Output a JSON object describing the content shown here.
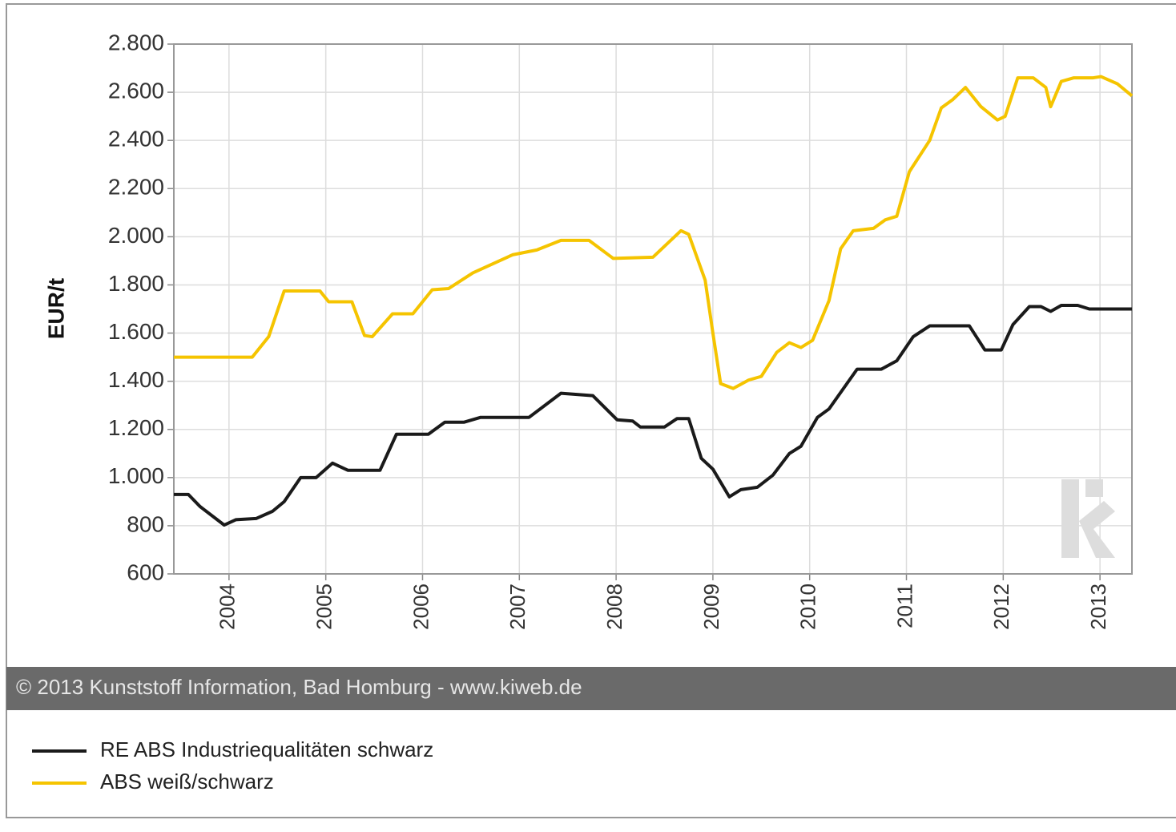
{
  "chart_data": {
    "type": "line",
    "y_label": "EUR/t",
    "footer": "© 2013 Kunststoff Information, Bad Homburg - www.kiweb.de",
    "xlim": [
      2003.43,
      2013.33
    ],
    "xticks": [
      2004,
      2005,
      2006,
      2007,
      2008,
      2009,
      2010,
      2011,
      2012,
      2013
    ],
    "ylim": [
      600,
      2800
    ],
    "yticks": [
      600,
      800,
      {
        "value": 1000,
        "label": "1.000"
      },
      {
        "value": 1200,
        "label": "1.200"
      },
      {
        "value": 1400,
        "label": "1.400"
      },
      {
        "value": 1600,
        "label": "1.600"
      },
      {
        "value": 1800,
        "label": "1.800"
      },
      {
        "value": 2000,
        "label": "2.000"
      },
      {
        "value": 2200,
        "label": "2.200"
      },
      {
        "value": 2400,
        "label": "2.400"
      },
      {
        "value": 2600,
        "label": "2.600"
      },
      {
        "value": 2800,
        "label": "2.800"
      }
    ],
    "grid": true,
    "legend": "bottom",
    "series": [
      {
        "name": "RE ABS Industriequalitäten schwarz",
        "color": "#1a1a1a",
        "x": [
          2003.43,
          2003.58,
          2003.7,
          2003.95,
          2004.07,
          2004.28,
          2004.45,
          2004.57,
          2004.74,
          2004.9,
          2005.07,
          2005.23,
          2005.56,
          2005.73,
          2006.06,
          2006.23,
          2006.43,
          2006.6,
          2007.1,
          2007.43,
          2007.76,
          2008.01,
          2008.17,
          2008.25,
          2008.5,
          2008.63,
          2008.75,
          2008.88,
          2009.0,
          2009.17,
          2009.29,
          2009.46,
          2009.62,
          2009.79,
          2009.91,
          2010.08,
          2010.2,
          2010.49,
          2010.74,
          2010.9,
          2011.07,
          2011.24,
          2011.65,
          2011.81,
          2011.98,
          2012.1,
          2012.27,
          2012.39,
          2012.49,
          2012.6,
          2012.77,
          2012.89,
          2013.33
        ],
        "values": [
          930,
          930,
          880,
          803,
          825,
          830,
          860,
          900,
          1000,
          1000,
          1060,
          1030,
          1030,
          1180,
          1180,
          1230,
          1230,
          1250,
          1250,
          1350,
          1340,
          1240,
          1235,
          1210,
          1210,
          1245,
          1245,
          1080,
          1035,
          920,
          950,
          960,
          1010,
          1100,
          1130,
          1250,
          1285,
          1450,
          1450,
          1485,
          1585,
          1630,
          1630,
          1530,
          1530,
          1635,
          1710,
          1710,
          1690,
          1715,
          1715,
          1700,
          1700
        ]
      },
      {
        "name": "ABS weiß/schwarz",
        "color": "#f5c400",
        "x": [
          2003.43,
          2004.24,
          2004.41,
          2004.57,
          2004.94,
          2005.03,
          2005.27,
          2005.4,
          2005.48,
          2005.69,
          2005.9,
          2006.1,
          2006.27,
          2006.52,
          2006.93,
          2007.18,
          2007.43,
          2007.72,
          2007.97,
          2008.38,
          2008.67,
          2008.75,
          2008.92,
          2009.0,
          2009.08,
          2009.21,
          2009.37,
          2009.5,
          2009.66,
          2009.79,
          2009.91,
          2010.03,
          2010.2,
          2010.32,
          2010.45,
          2010.66,
          2010.78,
          2010.9,
          2011.03,
          2011.24,
          2011.36,
          2011.48,
          2011.61,
          2011.77,
          2011.94,
          2012.02,
          2012.15,
          2012.31,
          2012.44,
          2012.49,
          2012.6,
          2012.73,
          2012.93,
          2013.01,
          2013.18,
          2013.33
        ],
        "values": [
          1500,
          1500,
          1585,
          1775,
          1775,
          1730,
          1730,
          1590,
          1585,
          1680,
          1680,
          1780,
          1785,
          1850,
          1925,
          1945,
          1985,
          1985,
          1910,
          1915,
          2025,
          2010,
          1820,
          1600,
          1390,
          1370,
          1405,
          1420,
          1520,
          1560,
          1540,
          1570,
          1735,
          1950,
          2025,
          2035,
          2070,
          2085,
          2270,
          2400,
          2535,
          2570,
          2620,
          2540,
          2485,
          2500,
          2660,
          2660,
          2620,
          2540,
          2645,
          2660,
          2660,
          2665,
          2635,
          2585
        ]
      }
    ]
  }
}
